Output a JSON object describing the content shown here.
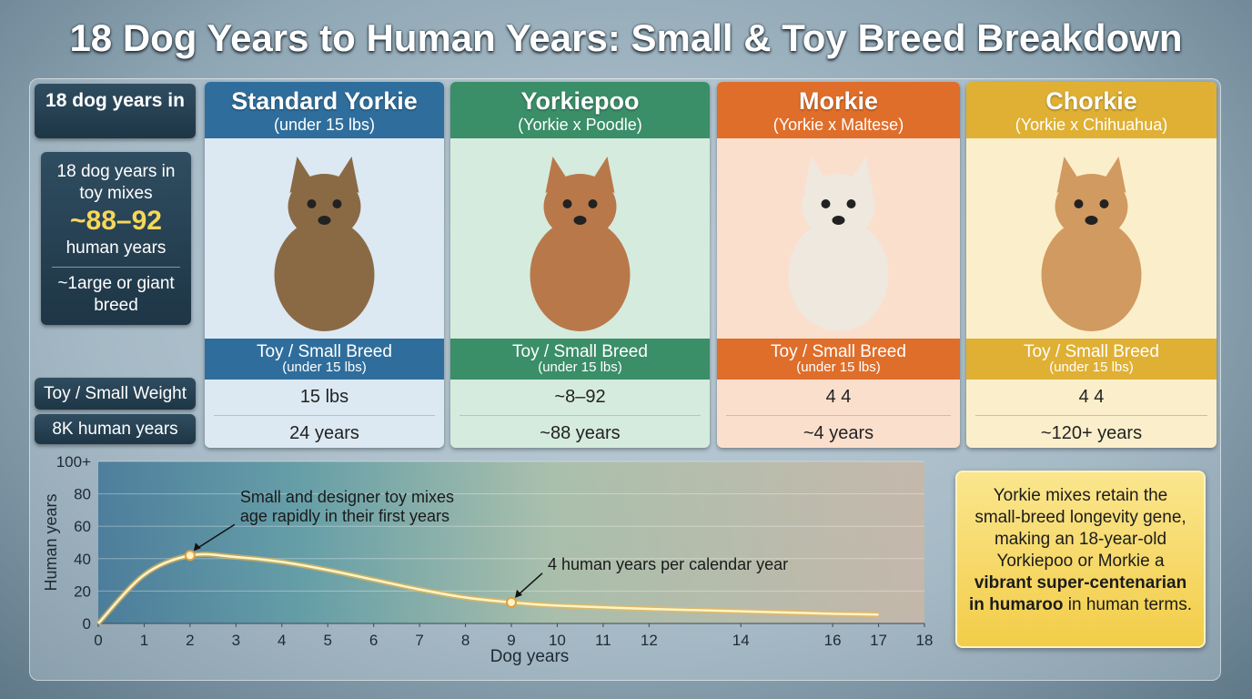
{
  "title": "18 Dog Years to Human Years: Small & Toy Breed Breakdown",
  "sidebar": {
    "header": "18 dog years in",
    "info_lines": [
      "18 dog years in",
      "toy mixes"
    ],
    "highlight": "~88–92",
    "highlight_unit": "human years",
    "info_footer": "~1arge or giant breed",
    "row_labels": [
      "Toy / Small Weight",
      "8K human years"
    ]
  },
  "cards": [
    {
      "name": "Standard Yorkie",
      "subtitle": "(under 15 lbs)",
      "band": "Toy / Small Breed",
      "band_sub": "(under 15 lbs)",
      "weight": "15 lbs",
      "years": "24 years",
      "color": "#2f6e9c",
      "tint": "#dce9f3"
    },
    {
      "name": "Yorkiepoo",
      "subtitle": "(Yorkie x Poodle)",
      "band": "Toy / Small Breed",
      "band_sub": "(under 15 lbs)",
      "weight": "~8–92",
      "years": "~88 years",
      "color": "#3a8e68",
      "tint": "#d5ebde"
    },
    {
      "name": "Morkie",
      "subtitle": "(Yorkie x Maltese)",
      "band": "Toy / Small Breed",
      "band_sub": "(under 15 lbs)",
      "weight": "4 4",
      "years": "~4 years",
      "color": "#df6e2a",
      "tint": "#fbdfcd"
    },
    {
      "name": "Chorkie",
      "subtitle": "(Yorkie x Chihuahua)",
      "band": "Toy / Small Breed",
      "band_sub": "(under 15 lbs)",
      "weight": "4 4",
      "years": "~120+ years",
      "color": "#dfb034",
      "tint": "#fbefcb"
    }
  ],
  "note": {
    "text": "Yorkie mixes retain the small-breed longevity gene, making an 18-year-old Yorkiepoo or Morkie a",
    "emphasis": "vibrant super-centenarian in humaroo",
    "tail": "in human terms."
  },
  "chart_data": {
    "type": "line",
    "x_label": "Dog years",
    "y_label": "Human years",
    "x": [
      0,
      1,
      2,
      3,
      4,
      5,
      6,
      7,
      8,
      9,
      10,
      12,
      14,
      16,
      17
    ],
    "series": [
      {
        "name": "Human years",
        "color": "#fff4c4",
        "values": [
          0,
          30,
          42,
          41,
          38,
          33,
          27,
          21,
          16,
          13,
          11,
          9,
          7.5,
          6,
          5.5
        ]
      }
    ],
    "xlim": [
      0,
      18
    ],
    "xticks": [
      0,
      1,
      2,
      3,
      4,
      5,
      6,
      7,
      8,
      9,
      10,
      11,
      12,
      14,
      16,
      17,
      18
    ],
    "ylim": [
      0,
      100
    ],
    "yticks": [
      0,
      20,
      40,
      60,
      80,
      {
        "value": 100,
        "label": "100+"
      }
    ],
    "grid": true,
    "annotations": [
      {
        "lines": [
          "Small and designer toy mixes",
          "age rapidly in their first years"
        ],
        "x": 2,
        "y": 42
      },
      {
        "lines": [
          "4 human years per calendar year"
        ],
        "x": 9,
        "y": 13
      }
    ]
  }
}
